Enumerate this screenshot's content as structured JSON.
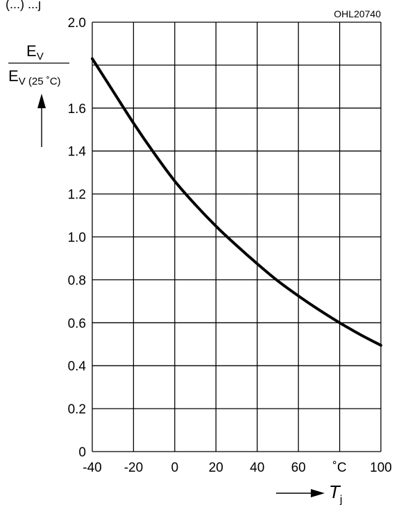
{
  "header": {
    "partial_text": "(...) ...j",
    "figure_code": "OHL20740"
  },
  "chart_data": {
    "type": "line",
    "title": "",
    "ylabel": {
      "numerator_main": "E",
      "numerator_sub": "V",
      "denominator_main": "E",
      "denominator_sub": "V (25 ˚C)"
    },
    "xlabel": {
      "main": "T",
      "sub": "j",
      "unit": "˚C"
    },
    "xlim": [
      -40,
      100
    ],
    "ylim": [
      0,
      2.0
    ],
    "x_ticks": [
      -40,
      -20,
      0,
      20,
      40,
      60,
      80,
      100
    ],
    "x_tick_labels": [
      "-40",
      "-20",
      "0",
      "20",
      "40",
      "60",
      "˚C",
      "100"
    ],
    "y_ticks": [
      0,
      0.2,
      0.4,
      0.6,
      0.8,
      1.0,
      1.2,
      1.4,
      1.6,
      1.8,
      2.0
    ],
    "y_tick_labels": [
      "0",
      "0.2",
      "0.4",
      "0.6",
      "0.8",
      "1.0",
      "1.2",
      "1.4",
      "1.6",
      "",
      "2.0"
    ],
    "grid": true,
    "series": [
      {
        "x": [
          -40,
          -30,
          -20,
          -10,
          0,
          10,
          20,
          30,
          40,
          50,
          60,
          70,
          80,
          90,
          100
        ],
        "y": [
          1.83,
          1.68,
          1.53,
          1.39,
          1.26,
          1.15,
          1.05,
          0.96,
          0.875,
          0.795,
          0.725,
          0.66,
          0.6,
          0.545,
          0.495
        ]
      }
    ]
  }
}
